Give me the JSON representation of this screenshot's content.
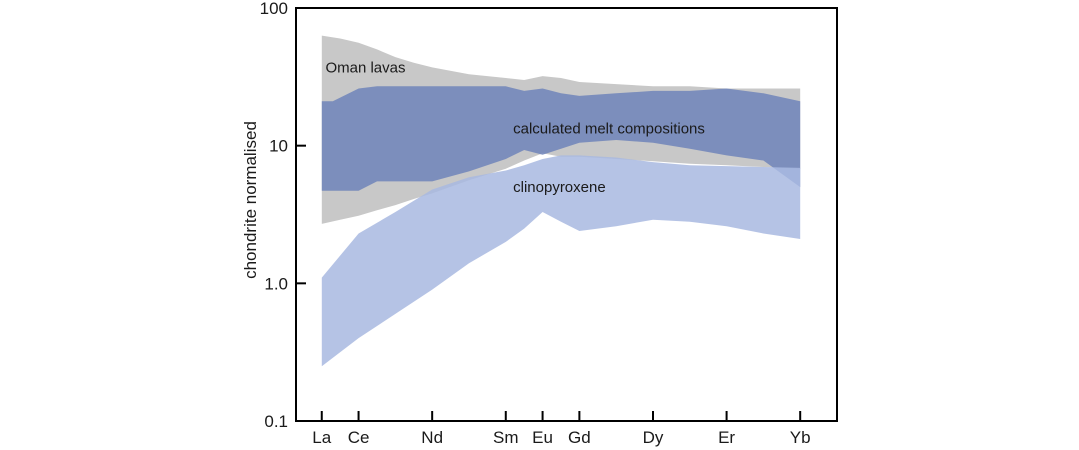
{
  "chart_data": {
    "type": "area",
    "title": "",
    "xlabel": "",
    "ylabel": "chondrite normalised",
    "yscale": "log",
    "ylim": [
      0.1,
      100
    ],
    "yticks": [
      {
        "value": 100,
        "label": "100"
      },
      {
        "value": 10,
        "label": "10"
      },
      {
        "value": 1,
        "label": "1.0"
      },
      {
        "value": 0.1,
        "label": "0.1"
      }
    ],
    "categories": [
      "La",
      "Ce",
      "Nd",
      "Sm",
      "Eu",
      "Gd",
      "Dy",
      "Er",
      "Yb"
    ],
    "category_positions": [
      57,
      58,
      60,
      62,
      63,
      64,
      66,
      68,
      70
    ],
    "xlim": [
      56.3,
      71.0
    ],
    "grid": false,
    "legend": "none",
    "series": [
      {
        "id": "oman",
        "color": "#c8c8c8",
        "x": [
          57,
          57.5,
          58,
          58.5,
          59,
          59.5,
          60,
          61,
          62,
          62.5,
          63,
          63.5,
          64,
          65,
          66,
          67,
          68,
          69,
          70
        ],
        "upper": [
          63,
          60,
          56,
          50,
          44,
          40,
          37,
          33,
          31,
          30,
          32,
          31,
          29,
          28,
          27,
          27,
          26,
          26,
          26
        ],
        "lower": [
          2.7,
          2.9,
          3.1,
          3.4,
          3.7,
          4.1,
          4.5,
          5.6,
          6.8,
          7.8,
          8.8,
          8.3,
          8.3,
          8.0,
          7.7,
          7.4,
          7.2,
          7.0,
          6.8
        ]
      },
      {
        "id": "melt",
        "color": "#6b81ba",
        "opacity": 0.82,
        "x": [
          57,
          57.3,
          58,
          58.5,
          59,
          60,
          61,
          62,
          62.5,
          63,
          63.5,
          64,
          65,
          66,
          67,
          68,
          69,
          70
        ],
        "upper": [
          21,
          21,
          26,
          27,
          27,
          27,
          27,
          27,
          25,
          26,
          24,
          23,
          24,
          25,
          25,
          26,
          24,
          21
        ],
        "lower": [
          4.7,
          4.7,
          4.7,
          5.5,
          5.5,
          5.5,
          6.5,
          8.0,
          9.3,
          8.6,
          9.5,
          10.5,
          11,
          10.5,
          9.5,
          8.5,
          7.8,
          5.0
        ]
      },
      {
        "id": "cpx",
        "color": "#a8b8e0",
        "opacity": 0.85,
        "x": [
          57,
          58,
          59,
          60,
          61,
          62,
          62.5,
          63,
          63.5,
          64,
          65,
          66,
          67,
          68,
          69,
          70
        ],
        "upper": [
          1.1,
          2.3,
          3.3,
          4.8,
          5.9,
          6.6,
          7.2,
          8.0,
          8.5,
          8.5,
          8.2,
          7.6,
          7.2,
          7.1,
          7.0,
          6.9
        ],
        "lower": [
          0.25,
          0.4,
          0.6,
          0.9,
          1.4,
          2.0,
          2.5,
          3.3,
          2.8,
          2.4,
          2.6,
          2.9,
          2.8,
          2.6,
          2.3,
          2.1
        ]
      }
    ],
    "annotations": [
      {
        "text": "Oman lavas",
        "x": 57.1,
        "y": 34
      },
      {
        "text": "calculated melt compositions",
        "x": 62.2,
        "y": 12.3
      },
      {
        "text": "clinopyroxene",
        "x": 62.2,
        "y": 4.6
      }
    ]
  }
}
